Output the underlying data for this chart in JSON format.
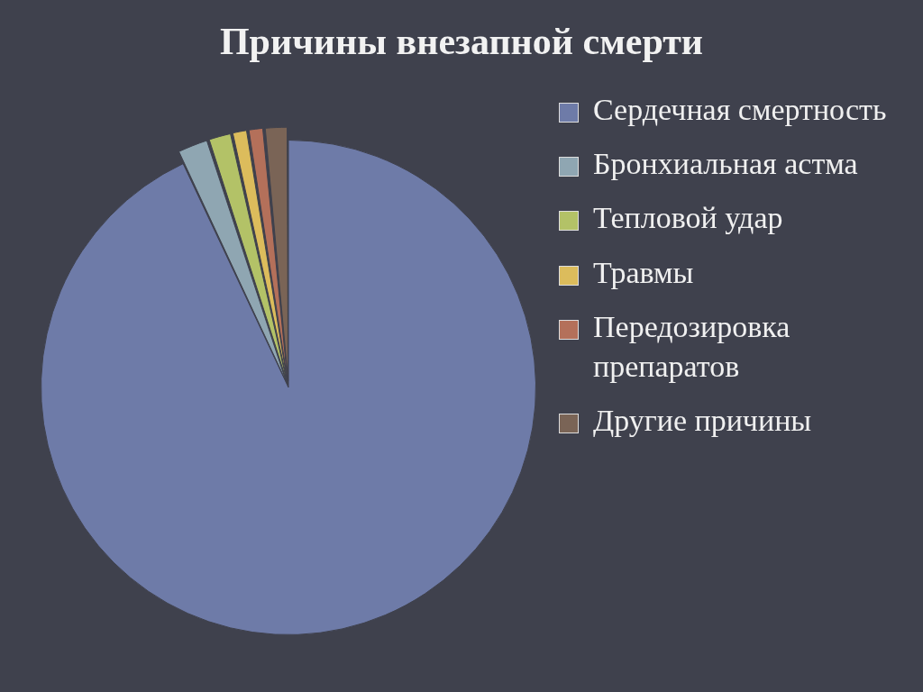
{
  "chart_data": {
    "type": "pie",
    "title": "Причины внезапной смерти",
    "categories": [
      "Сердечная смертность",
      "Бронхиальная астма",
      "Тепловой удар",
      "Травмы",
      "Передозировка препаратов",
      "Другие причины"
    ],
    "values": [
      93,
      2,
      1.5,
      1,
      1,
      1.5
    ],
    "colors": [
      "#6e7ba8",
      "#8fa6b2",
      "#b3c267",
      "#dcbc5c",
      "#b4705a",
      "#7a6456"
    ],
    "legend": "right"
  }
}
